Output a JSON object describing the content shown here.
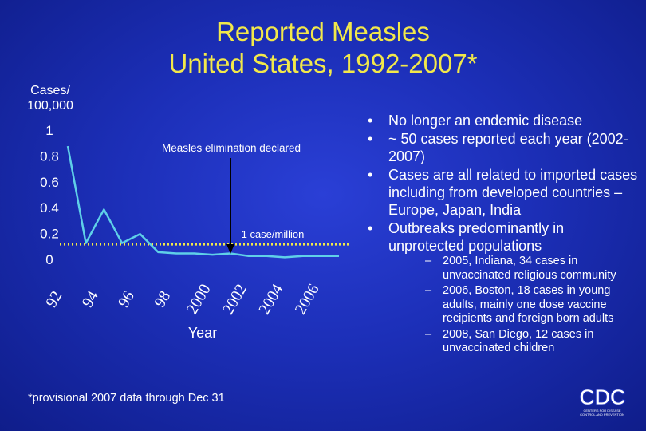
{
  "title": {
    "line1": "Reported Measles",
    "line2": "United States, 1992-2007*"
  },
  "chart_data": {
    "type": "line",
    "ylabel_lines": [
      "Cases/",
      "100,000"
    ],
    "xlabel": "Year",
    "yticks": [
      "0",
      "0.2",
      "0.4",
      "0.6",
      "0.8",
      "1"
    ],
    "ylim": [
      0,
      1
    ],
    "xticks": [
      "92",
      "94",
      "96",
      "98",
      "2000",
      "2002",
      "2004",
      "2006"
    ],
    "x": [
      1992,
      1993,
      1994,
      1995,
      1996,
      1997,
      1998,
      1999,
      2000,
      2001,
      2002,
      2003,
      2004,
      2005,
      2006,
      2007
    ],
    "series": [
      {
        "values": [
          0.87,
          0.12,
          0.38,
          0.12,
          0.19,
          0.05,
          0.04,
          0.04,
          0.03,
          0.04,
          0.02,
          0.02,
          0.01,
          0.02,
          0.02,
          0.02
        ]
      }
    ],
    "reference_line": {
      "value": 0.11,
      "label": "1 case/million",
      "style": "dotted"
    },
    "annotation": {
      "text": "Measles elimination declared",
      "arrow_to_year": 2000
    },
    "line_color": "#5fd0e8",
    "ref_color": "#f2e84a"
  },
  "bullets": [
    {
      "text": "No longer an endemic disease"
    },
    {
      "text": "~ 50 cases reported each year (2002-2007)"
    },
    {
      "text": "Cases are all related to imported cases including from developed countries – Europe, Japan, India"
    },
    {
      "text": "Outbreaks predominantly in unprotected populations",
      "sub": [
        "2005, Indiana, 34 cases in unvaccinated religious community",
        "2006, Boston, 18 cases in young adults, mainly one dose vaccine recipients and foreign born adults",
        "2008, San Diego, 12 cases in unvaccinated children"
      ]
    }
  ],
  "footnote": "*provisional 2007 data through Dec 31",
  "logo": {
    "text": "CDC",
    "sub": "CENTERS FOR DISEASE CONTROL AND PREVENTION"
  }
}
